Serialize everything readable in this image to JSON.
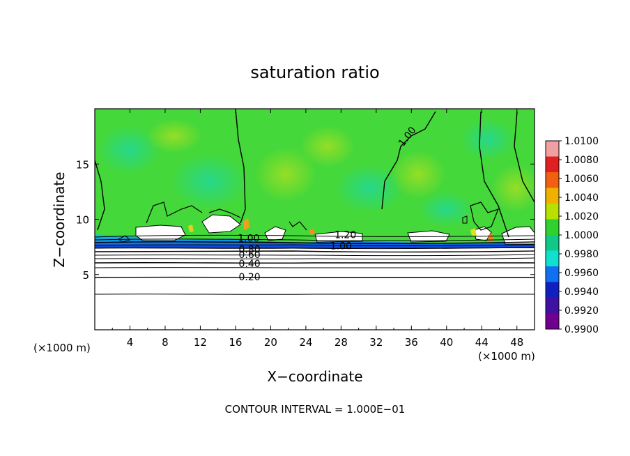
{
  "chart_data": {
    "type": "heatmap",
    "title": "saturation ratio",
    "xlabel": "X−coordinate",
    "ylabel": "Z−coordinate",
    "x_unit_left": "(×1000 m)",
    "x_unit_right": "(×1000 m)",
    "footer": "CONTOUR INTERVAL = 1.000E−01",
    "xlim": [
      0,
      50
    ],
    "ylim": [
      0,
      20
    ],
    "xticks": [
      4,
      8,
      12,
      16,
      20,
      24,
      28,
      32,
      36,
      40,
      44,
      48
    ],
    "yticks": [
      5,
      10,
      15
    ],
    "colorbar": {
      "levels": [
        0.99,
        0.992,
        0.994,
        0.996,
        0.998,
        1.0,
        1.002,
        1.004,
        1.006,
        1.008,
        1.01
      ],
      "labels": [
        "1.0100",
        "1.0080",
        "1.0060",
        "1.0040",
        "1.0020",
        "1.0000",
        "0.9980",
        "0.9960",
        "0.9940",
        "0.9920",
        "0.9900"
      ],
      "colors": [
        "#f0a0a0",
        "#e02020",
        "#f06010",
        "#f0b000",
        "#b8e000",
        "#30d030",
        "#10c888",
        "#10e0d0",
        "#1070f0",
        "#1020c0",
        "#4010a0",
        "#700090"
      ]
    },
    "contours": [
      {
        "label": "1.00",
        "x": 35.5,
        "y": 17.5
      },
      {
        "label": "1.20",
        "x": 28.5,
        "y": 8.6
      },
      {
        "label": "1.00",
        "x": 28,
        "y": 7.6
      },
      {
        "label": "1.00",
        "x": 17.5,
        "y": 8.3
      },
      {
        "label": "0.80",
        "x": 17.6,
        "y": 7.3
      },
      {
        "label": "0.60",
        "x": 17.6,
        "y": 6.8
      },
      {
        "label": "0.40",
        "x": 17.6,
        "y": 6.0
      },
      {
        "label": "0.20",
        "x": 17.6,
        "y": 4.8
      }
    ]
  }
}
